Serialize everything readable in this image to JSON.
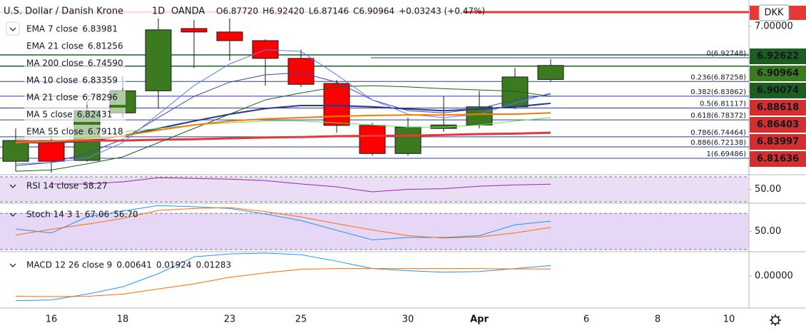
{
  "chart_data": {
    "type": "candlestick",
    "title": "U.S. Dollar / Danish Krone",
    "interval": "1D",
    "source": "OANDA",
    "header_values": [
      "O6.87720",
      "H6.92420",
      "L6.87146",
      "C6.90964",
      "+0.03243 (+0.47%)"
    ],
    "currency": "DKK",
    "categories": [
      null,
      "16",
      null,
      "18",
      null,
      null,
      "23",
      null,
      "25",
      null,
      null,
      "30",
      null,
      "Apr",
      null,
      null,
      "6",
      null,
      "8",
      null,
      "10"
    ],
    "open": [
      6.688,
      6.736,
      6.69,
      6.8,
      6.851,
      6.995,
      6.987,
      6.967,
      6.926,
      6.868,
      6.771,
      6.706,
      6.764,
      6.772,
      6.814,
      6.8772,
      null,
      null,
      null,
      null,
      null
    ],
    "high": [
      6.764,
      6.748,
      6.827,
      6.885,
      7.025,
      7.015,
      7.02,
      6.97,
      6.946,
      6.876,
      6.777,
      6.789,
      6.838,
      6.851,
      6.904,
      6.9242,
      null,
      null,
      null,
      null,
      null
    ],
    "low": [
      6.665,
      6.662,
      6.687,
      6.789,
      6.81,
      6.904,
      6.921,
      6.863,
      6.86,
      6.754,
      6.701,
      6.701,
      6.756,
      6.764,
      6.809,
      6.87146,
      null,
      null,
      null,
      null,
      null
    ],
    "close": [
      6.736,
      6.688,
      6.805,
      6.851,
      6.992,
      6.987,
      6.967,
      6.926,
      6.866,
      6.771,
      6.706,
      6.767,
      6.772,
      6.814,
      6.883,
      6.90964,
      null,
      null,
      null,
      null,
      null
    ],
    "up_color": "#3b7a1e",
    "down_color": "#ff0000",
    "ylim": [
      6.657,
      7.061
    ],
    "yticks": [
      {
        "value": 7.0,
        "label": "7.00000"
      }
    ],
    "series": [
      {
        "name": "EMA 7 close",
        "legend_value": "6.83981",
        "color": "#3949ab",
        "width": 1,
        "values": [
          6.678,
          6.685,
          6.706,
          6.739,
          6.789,
          6.838,
          6.871,
          6.888,
          6.893,
          6.871,
          6.83,
          6.805,
          6.8,
          6.81,
          6.83,
          6.843,
          null,
          null,
          null,
          null,
          null
        ]
      },
      {
        "name": "EMA 21 close",
        "legend_value": "6.81256",
        "color": "#283593",
        "width": 2,
        "values": [
          6.731,
          6.731,
          6.734,
          6.747,
          6.764,
          6.781,
          6.797,
          6.81,
          6.817,
          6.817,
          6.814,
          6.809,
          6.805,
          6.809,
          6.814,
          6.822,
          null,
          null,
          null,
          null,
          null
        ]
      },
      {
        "name": "MA 200 close",
        "legend_value": "6.74590",
        "color": "#e53935",
        "width": 3,
        "values": [
          6.734,
          6.734,
          6.736,
          6.736,
          6.738,
          6.739,
          6.741,
          6.743,
          6.744,
          6.746,
          6.747,
          6.747,
          6.749,
          6.751,
          6.752,
          6.754,
          null,
          null,
          null,
          null,
          null
        ]
      },
      {
        "name": "MA 10 close",
        "legend_value": "6.83359",
        "color": "#1b5e20",
        "width": 1,
        "values": [
          6.665,
          6.668,
          6.682,
          6.698,
          6.731,
          6.764,
          6.797,
          6.83,
          6.846,
          6.86,
          6.863,
          6.86,
          6.856,
          6.853,
          6.85,
          6.838,
          null,
          null,
          null,
          null,
          null
        ]
      },
      {
        "name": "MA 21 close",
        "legend_value": "6.78296",
        "color": "#66e04a",
        "width": 1,
        "values": [
          6.739,
          6.743,
          6.747,
          6.756,
          6.764,
          6.772,
          6.777,
          6.781,
          6.781,
          6.777,
          6.772,
          6.767,
          6.767,
          6.772,
          6.781,
          6.789,
          null,
          null,
          null,
          null,
          null
        ]
      },
      {
        "name": "MA 5 close",
        "legend_value": "6.82431",
        "color": "#5c7cfa",
        "width": 1,
        "values": [
          6.682,
          6.685,
          6.695,
          6.731,
          6.797,
          6.863,
          6.913,
          6.946,
          6.942,
          6.888,
          6.83,
          6.797,
          6.789,
          6.797,
          6.822,
          6.846,
          null,
          null,
          null,
          null,
          null
        ]
      },
      {
        "name": "EMA 55 close",
        "legend_value": "6.79118",
        "color": "#f57c00",
        "width": 2,
        "values": [
          6.731,
          6.734,
          6.739,
          6.747,
          6.76,
          6.772,
          6.781,
          6.786,
          6.789,
          6.792,
          6.794,
          6.795,
          6.795,
          6.797,
          6.797,
          6.8,
          null,
          null,
          null,
          null,
          null
        ]
      }
    ],
    "fib_color": "#2a3e9f",
    "fib_levels": [
      {
        "value": 6.92748,
        "label": "0(6.92748)"
      },
      {
        "value": 6.87258,
        "label": "0.236(6.87258)"
      },
      {
        "value": 6.83862,
        "label": "0.382(6.83862)"
      },
      {
        "value": 6.81117,
        "label": "0.5(6.81117)"
      },
      {
        "value": 6.78372,
        "label": "0.618(6.78372)"
      },
      {
        "value": 6.74464,
        "label": "0.786(6.74464)"
      },
      {
        "value": 6.72138,
        "label": "0.886(6.72138)"
      },
      {
        "value": 6.69486,
        "label": "1(6.69486)"
      }
    ],
    "horizontal_lines": [
      {
        "value": 7.033,
        "color": "#e53935"
      },
      {
        "value": 6.934,
        "color": "#1b5e20"
      },
      {
        "value": 6.908,
        "color": "#1b5e20"
      }
    ],
    "price_labels": [
      {
        "value": 6.92622,
        "color": "#1b5e20"
      },
      {
        "value": 6.90964,
        "color": "#3b7a1e"
      },
      {
        "value": 6.90074,
        "color": "#1b5e20"
      },
      {
        "value": 6.88618,
        "color": "#d32f2f"
      },
      {
        "value": 6.86403,
        "color": "#d32f2f"
      },
      {
        "value": 6.83997,
        "color": "#d32f2f"
      },
      {
        "value": 6.81636,
        "color": "#d32f2f"
      }
    ],
    "indicators": [
      {
        "name": "RSI 14 close",
        "legend": [
          {
            "text": "58.27",
            "color": "#7b1fa2"
          }
        ],
        "ylim": [
          28.9,
          72.3
        ],
        "yticks": [
          {
            "value": 50,
            "label": "50.00"
          }
        ],
        "band": [
          30,
          70
        ],
        "band_color": "#e1d0f0",
        "series": [
          {
            "color": "#9c27b0",
            "values": [
              null,
              58.6,
              58.6,
              62,
              68.6,
              67.5,
              66.3,
              64,
              58.6,
              54,
              46,
              50,
              51,
              55,
              57,
              58.27,
              null,
              null,
              null,
              null,
              null
            ]
          }
        ]
      },
      {
        "name": "Stoch 14 3 1",
        "legend": [
          {
            "text": "67.06",
            "color": "#2196f3"
          },
          {
            "text": "56.70",
            "color": "#ff6d00"
          }
        ],
        "ylim": [
          17.6,
          95.6
        ],
        "yticks": [
          {
            "value": 50,
            "label": "50.00"
          }
        ],
        "band": [
          20,
          80
        ],
        "band_color": "#dcc6f2",
        "series": [
          {
            "color": "#2196f3",
            "values": [
              54,
              47.6,
              74,
              84,
              93,
              91,
              88,
              79,
              68,
              52,
              36,
              40,
              40,
              43,
              61,
              67.06,
              null,
              null,
              null,
              null,
              null
            ]
          },
          {
            "color": "#ff6d00",
            "values": [
              44,
              53.6,
              62,
              71.6,
              84.8,
              88,
              89.6,
              83,
              74,
              63,
              52.4,
              43,
              39,
              41,
              47.6,
              56.7,
              null,
              null,
              null,
              null,
              null
            ]
          }
        ]
      },
      {
        "name": "MACD 12 26 close 9",
        "legend": [
          {
            "text": "0.00641",
            "color": "#26a69a"
          },
          {
            "text": "0.01924",
            "color": "#2196f3"
          },
          {
            "text": "0.01283",
            "color": "#ff6d00"
          }
        ],
        "ylim": [
          -0.0605,
          0.044
        ],
        "yticks": [
          {
            "value": 0,
            "label": "0.00000"
          }
        ],
        "series": [
          {
            "color": "#2196f3",
            "values": [
              -0.0467,
              -0.0453,
              -0.0344,
              -0.0206,
              0.0041,
              0.0357,
              0.0412,
              0.0426,
              0.0398,
              0.0275,
              0.0137,
              0.0096,
              0.0069,
              0.0082,
              0.0137,
              0.01924,
              null,
              null,
              null,
              null,
              null
            ]
          },
          {
            "color": "#ff6d00",
            "values": [
              -0.0385,
              -0.039,
              -0.0385,
              -0.0344,
              -0.0247,
              -0.0151,
              -0.0027,
              0.0055,
              0.0124,
              0.0137,
              0.0137,
              0.0137,
              0.0137,
              0.0137,
              0.013,
              0.01283,
              null,
              null,
              null,
              null,
              null
            ]
          }
        ]
      }
    ]
  }
}
